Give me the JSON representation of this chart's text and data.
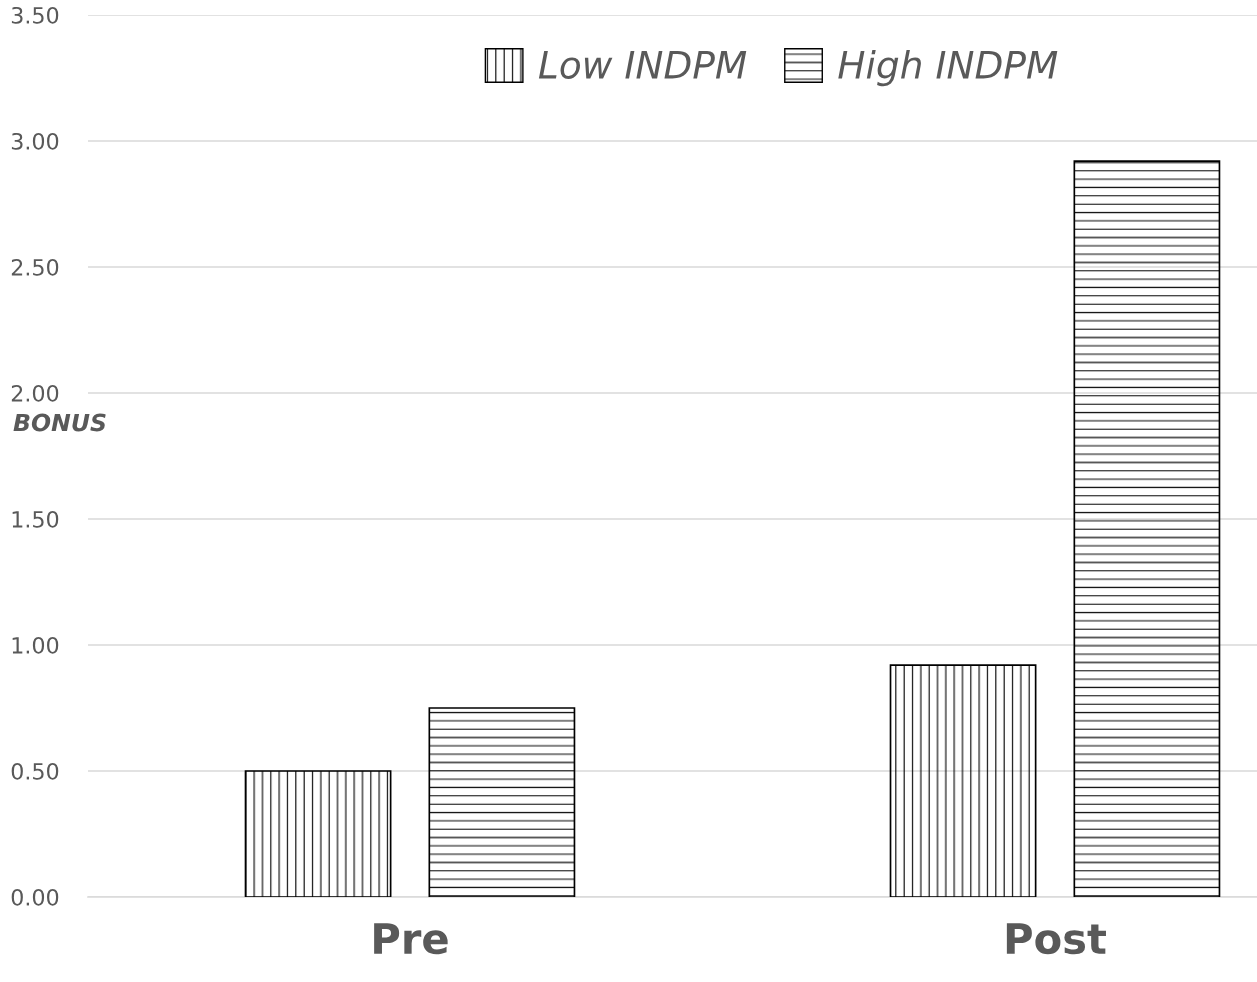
{
  "chart_data": {
    "type": "bar",
    "ylabel": "BONUS",
    "categories": [
      "Pre",
      "Post"
    ],
    "series": [
      {
        "name": "Low INDPM",
        "color": "#000000",
        "values": [
          0.5,
          0.92
        ]
      },
      {
        "name": "High INDPM",
        "color": "#000000",
        "values": [
          0.75,
          2.92
        ]
      }
    ],
    "ylim": [
      0,
      3.5
    ],
    "yticks": [
      {
        "value": 0,
        "label": "0.00"
      },
      {
        "value": 0.5,
        "label": "0.50"
      },
      {
        "value": 1,
        "label": "1.00"
      },
      {
        "value": 1.5,
        "label": "1.50"
      },
      {
        "value": 2,
        "label": "2.00"
      },
      {
        "value": 2.5,
        "label": "2.50"
      },
      {
        "value": 3,
        "label": "3.00"
      },
      {
        "value": 3.5,
        "label": "3.50"
      }
    ],
    "grid": "y",
    "legend": "top"
  }
}
